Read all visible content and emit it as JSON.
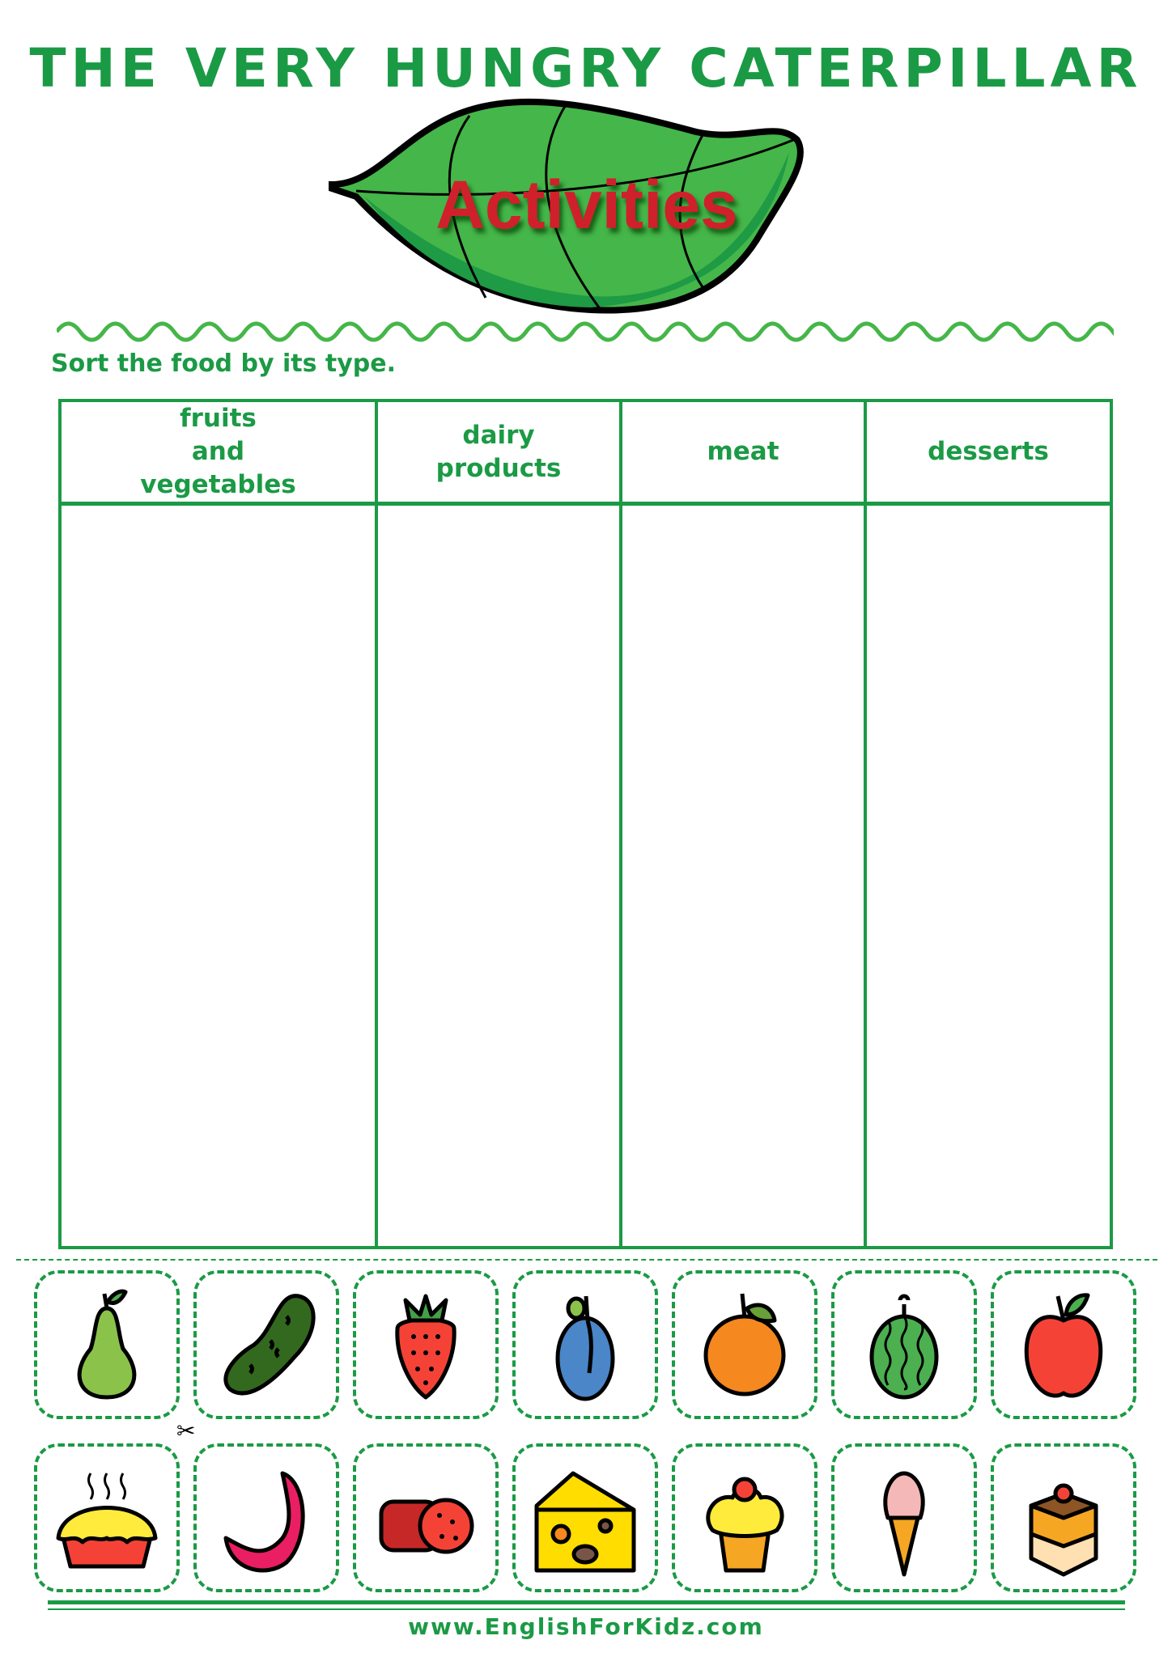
{
  "header": {
    "title": "THE VERY HUNGRY CATERPILLAR",
    "subtitle": "Activities"
  },
  "instruction": "Sort the food by its type.",
  "table": {
    "columns": [
      "fruits\nand\nvegetables",
      "dairy\nproducts",
      "meat",
      "desserts"
    ]
  },
  "cards": {
    "row1": [
      "pear",
      "cucumber",
      "strawberry",
      "plum",
      "orange",
      "watermelon",
      "apple"
    ],
    "row2": [
      "pie",
      "sausage",
      "salami",
      "cheese",
      "cupcake",
      "ice-cream",
      "cake"
    ]
  },
  "colors": {
    "brand_green": "#1b9a45",
    "title_red": "#d0202b",
    "leaf_green": "#45b649"
  },
  "footer": {
    "website": "www.EnglishForKidz.com"
  }
}
